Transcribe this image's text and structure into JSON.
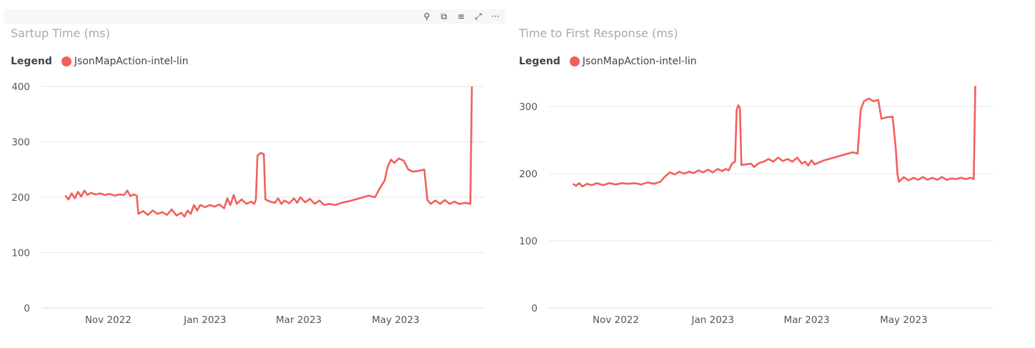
{
  "toolbar": {
    "icons": [
      "pin-icon",
      "copy-icon",
      "filter-icon",
      "expand-icon",
      "more-icon"
    ],
    "glyphs": [
      "⚲",
      "⧉",
      "≡",
      "⤢",
      "···"
    ]
  },
  "series_color": "#f25f5c",
  "chart_data": [
    {
      "type": "line",
      "title": "Sartup Time (ms)",
      "legend_title": "Legend",
      "legend_position": "top-left",
      "xlabel": "",
      "ylabel": "",
      "x_ticks": [
        "Nov 2022",
        "Jan 2023",
        "Mar 2023",
        "May 2023"
      ],
      "y_ticks": [
        "0",
        "100",
        "200",
        "300",
        "400"
      ],
      "ylim": [
        0,
        400
      ],
      "grid": true,
      "series": [
        {
          "name": "JsonMapAction-intel-lin",
          "points": [
            [
              "2022-10-05",
              203
            ],
            [
              "2022-10-07",
              196
            ],
            [
              "2022-10-09",
              207
            ],
            [
              "2022-10-11",
              198
            ],
            [
              "2022-10-13",
              210
            ],
            [
              "2022-10-15",
              201
            ],
            [
              "2022-10-17",
              212
            ],
            [
              "2022-10-19",
              204
            ],
            [
              "2022-10-21",
              208
            ],
            [
              "2022-10-24",
              205
            ],
            [
              "2022-10-27",
              207
            ],
            [
              "2022-10-30",
              204
            ],
            [
              "2022-11-02",
              206
            ],
            [
              "2022-11-05",
              203
            ],
            [
              "2022-11-08",
              205
            ],
            [
              "2022-11-11",
              204
            ],
            [
              "2022-11-13",
              212
            ],
            [
              "2022-11-15",
              202
            ],
            [
              "2022-11-17",
              205
            ],
            [
              "2022-11-19",
              203
            ],
            [
              "2022-11-20",
              170
            ],
            [
              "2022-11-23",
              175
            ],
            [
              "2022-11-26",
              168
            ],
            [
              "2022-11-29",
              176
            ],
            [
              "2022-12-02",
              170
            ],
            [
              "2022-12-05",
              173
            ],
            [
              "2022-12-08",
              168
            ],
            [
              "2022-12-11",
              178
            ],
            [
              "2022-12-14",
              167
            ],
            [
              "2022-12-17",
              172
            ],
            [
              "2022-12-19",
              165
            ],
            [
              "2022-12-21",
              176
            ],
            [
              "2022-12-23",
              170
            ],
            [
              "2022-12-25",
              186
            ],
            [
              "2022-12-27",
              176
            ],
            [
              "2022-12-29",
              186
            ],
            [
              "2023-01-01",
              182
            ],
            [
              "2023-01-04",
              186
            ],
            [
              "2023-01-07",
              183
            ],
            [
              "2023-01-10",
              187
            ],
            [
              "2023-01-13",
              180
            ],
            [
              "2023-01-15",
              198
            ],
            [
              "2023-01-17",
              186
            ],
            [
              "2023-01-19",
              204
            ],
            [
              "2023-01-21",
              188
            ],
            [
              "2023-01-24",
              196
            ],
            [
              "2023-01-27",
              188
            ],
            [
              "2023-01-30",
              192
            ],
            [
              "2023-02-01",
              188
            ],
            [
              "2023-02-02",
              196
            ],
            [
              "2023-02-03",
              275
            ],
            [
              "2023-02-05",
              280
            ],
            [
              "2023-02-07",
              278
            ],
            [
              "2023-02-08",
              196
            ],
            [
              "2023-02-11",
              192
            ],
            [
              "2023-02-14",
              190
            ],
            [
              "2023-02-16",
              198
            ],
            [
              "2023-02-18",
              188
            ],
            [
              "2023-02-20",
              194
            ],
            [
              "2023-02-23",
              189
            ],
            [
              "2023-02-26",
              198
            ],
            [
              "2023-02-28",
              190
            ],
            [
              "2023-03-02",
              200
            ],
            [
              "2023-03-05",
              191
            ],
            [
              "2023-03-08",
              197
            ],
            [
              "2023-03-11",
              188
            ],
            [
              "2023-03-14",
              194
            ],
            [
              "2023-03-17",
              186
            ],
            [
              "2023-03-20",
              188
            ],
            [
              "2023-03-24",
              186
            ],
            [
              "2023-03-28",
              190
            ],
            [
              "2023-04-02",
              193
            ],
            [
              "2023-04-08",
              198
            ],
            [
              "2023-04-14",
              203
            ],
            [
              "2023-04-18",
              200
            ],
            [
              "2023-04-21",
              216
            ],
            [
              "2023-04-24",
              230
            ],
            [
              "2023-04-26",
              255
            ],
            [
              "2023-04-28",
              268
            ],
            [
              "2023-04-30",
              262
            ],
            [
              "2023-05-03",
              270
            ],
            [
              "2023-05-06",
              266
            ],
            [
              "2023-05-09",
              250
            ],
            [
              "2023-05-12",
              246
            ],
            [
              "2023-05-16",
              248
            ],
            [
              "2023-05-19",
              250
            ],
            [
              "2023-05-21",
              195
            ],
            [
              "2023-05-23",
              188
            ],
            [
              "2023-05-26",
              194
            ],
            [
              "2023-05-29",
              188
            ],
            [
              "2023-06-01",
              195
            ],
            [
              "2023-06-04",
              188
            ],
            [
              "2023-06-07",
              192
            ],
            [
              "2023-06-10",
              188
            ],
            [
              "2023-06-14",
              190
            ],
            [
              "2023-06-17",
              188
            ],
            [
              "2023-06-18",
              400
            ]
          ]
        }
      ]
    },
    {
      "type": "line",
      "title": "Time to First Response (ms)",
      "legend_title": "Legend",
      "legend_position": "top-left",
      "xlabel": "",
      "ylabel": "",
      "x_ticks": [
        "Nov 2022",
        "Jan 2023",
        "Mar 2023",
        "May 2023"
      ],
      "y_ticks": [
        "0",
        "100",
        "200",
        "300"
      ],
      "ylim": [
        0,
        330
      ],
      "grid": true,
      "series": [
        {
          "name": "JsonMapAction-intel-lin",
          "points": [
            [
              "2022-10-05",
              185
            ],
            [
              "2022-10-07",
              182
            ],
            [
              "2022-10-09",
              186
            ],
            [
              "2022-10-11",
              181
            ],
            [
              "2022-10-14",
              185
            ],
            [
              "2022-10-17",
              183
            ],
            [
              "2022-10-20",
              186
            ],
            [
              "2022-10-24",
              183
            ],
            [
              "2022-10-28",
              186
            ],
            [
              "2022-11-01",
              184
            ],
            [
              "2022-11-05",
              186
            ],
            [
              "2022-11-09",
              185
            ],
            [
              "2022-11-13",
              186
            ],
            [
              "2022-11-17",
              184
            ],
            [
              "2022-11-21",
              187
            ],
            [
              "2022-11-25",
              185
            ],
            [
              "2022-11-29",
              188
            ],
            [
              "2022-12-02",
              196
            ],
            [
              "2022-12-05",
              202
            ],
            [
              "2022-12-08",
              199
            ],
            [
              "2022-12-11",
              203
            ],
            [
              "2022-12-14",
              200
            ],
            [
              "2022-12-17",
              203
            ],
            [
              "2022-12-20",
              201
            ],
            [
              "2022-12-23",
              205
            ],
            [
              "2022-12-26",
              202
            ],
            [
              "2022-12-29",
              206
            ],
            [
              "2023-01-01",
              202
            ],
            [
              "2023-01-04",
              207
            ],
            [
              "2023-01-07",
              204
            ],
            [
              "2023-01-09",
              207
            ],
            [
              "2023-01-11",
              205
            ],
            [
              "2023-01-13",
              215
            ],
            [
              "2023-01-15",
              218
            ],
            [
              "2023-01-16",
              295
            ],
            [
              "2023-01-17",
              302
            ],
            [
              "2023-01-18",
              298
            ],
            [
              "2023-01-19",
              213
            ],
            [
              "2023-01-22",
              214
            ],
            [
              "2023-01-25",
              215
            ],
            [
              "2023-01-27",
              210
            ],
            [
              "2023-01-30",
              216
            ],
            [
              "2023-02-02",
              218
            ],
            [
              "2023-02-05",
              222
            ],
            [
              "2023-02-08",
              218
            ],
            [
              "2023-02-11",
              224
            ],
            [
              "2023-02-14",
              219
            ],
            [
              "2023-02-17",
              222
            ],
            [
              "2023-02-20",
              218
            ],
            [
              "2023-02-23",
              224
            ],
            [
              "2023-02-26",
              215
            ],
            [
              "2023-02-28",
              218
            ],
            [
              "2023-03-02",
              212
            ],
            [
              "2023-03-04",
              220
            ],
            [
              "2023-03-06",
              214
            ],
            [
              "2023-03-08",
              216
            ],
            [
              "2023-03-12",
              220
            ],
            [
              "2023-03-18",
              224
            ],
            [
              "2023-03-24",
              228
            ],
            [
              "2023-03-30",
              232
            ],
            [
              "2023-04-02",
              230
            ],
            [
              "2023-04-04",
              296
            ],
            [
              "2023-04-06",
              308
            ],
            [
              "2023-04-09",
              312
            ],
            [
              "2023-04-12",
              308
            ],
            [
              "2023-04-15",
              310
            ],
            [
              "2023-04-17",
              282
            ],
            [
              "2023-04-20",
              284
            ],
            [
              "2023-04-24",
              285
            ],
            [
              "2023-04-26",
              238
            ],
            [
              "2023-04-27",
              200
            ],
            [
              "2023-04-28",
              188
            ],
            [
              "2023-05-01",
              195
            ],
            [
              "2023-05-04",
              190
            ],
            [
              "2023-05-07",
              194
            ],
            [
              "2023-05-10",
              191
            ],
            [
              "2023-05-13",
              195
            ],
            [
              "2023-05-16",
              191
            ],
            [
              "2023-05-19",
              194
            ],
            [
              "2023-05-22",
              191
            ],
            [
              "2023-05-25",
              195
            ],
            [
              "2023-05-28",
              191
            ],
            [
              "2023-05-31",
              193
            ],
            [
              "2023-06-03",
              192
            ],
            [
              "2023-06-06",
              194
            ],
            [
              "2023-06-09",
              192
            ],
            [
              "2023-06-12",
              194
            ],
            [
              "2023-06-14",
              192
            ],
            [
              "2023-06-15",
              331
            ]
          ]
        }
      ]
    }
  ]
}
